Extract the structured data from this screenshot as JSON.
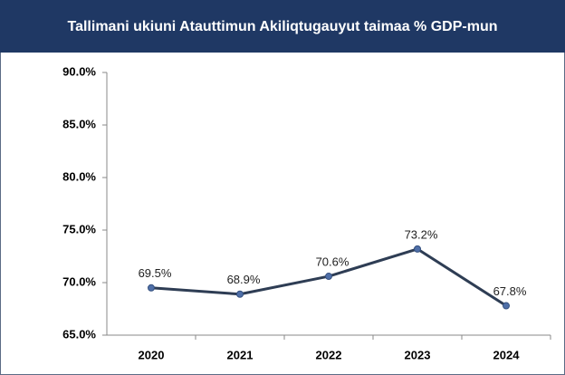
{
  "chart_data": {
    "type": "line",
    "title": "Tallimani ukiuni Atauttimun Akiliqtugauyut taimaa % GDP-mun",
    "categories": [
      "2020",
      "2021",
      "2022",
      "2023",
      "2024"
    ],
    "series": [
      {
        "color": "#2e3d54",
        "values": [
          69.5,
          68.9,
          70.6,
          73.2,
          67.8
        ],
        "value_labels": [
          "69.5%",
          "68.9%",
          "70.6%",
          "73.2%",
          "67.8%"
        ]
      }
    ],
    "ylim": [
      65,
      90
    ],
    "yticks": [
      {
        "value": 65,
        "label": "65.0%"
      },
      {
        "value": 70,
        "label": "70.0%"
      },
      {
        "value": 75,
        "label": "75.0%"
      },
      {
        "value": 80,
        "label": "80.0%"
      },
      {
        "value": 85,
        "label": "85.0%"
      },
      {
        "value": 90,
        "label": "90.0%"
      }
    ],
    "grid": false
  }
}
